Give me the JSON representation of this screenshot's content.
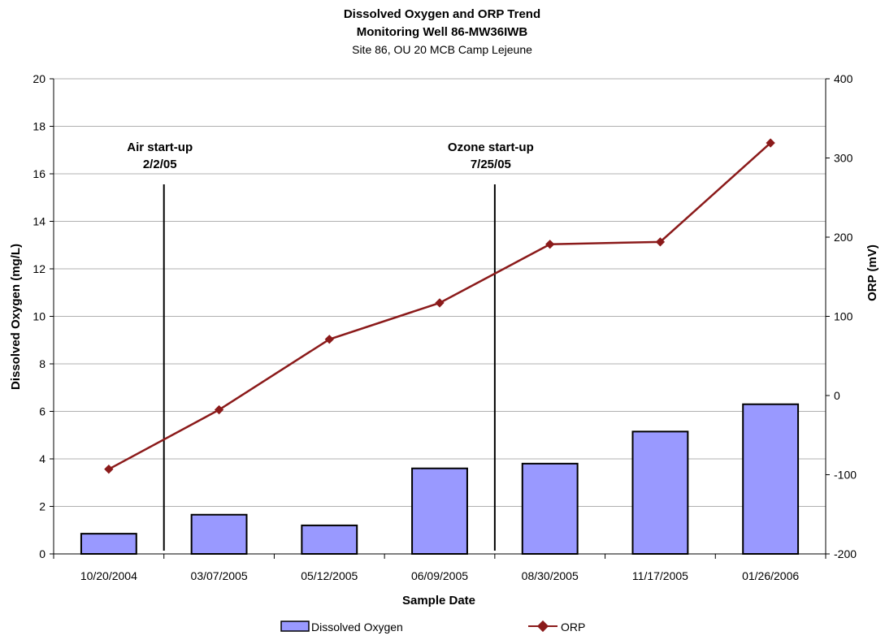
{
  "chart_data": {
    "type": "bar+line",
    "title": "Dissolved Oxygen and ORP Trend",
    "subtitle1": "Monitoring Well 86-MW36IWB",
    "subtitle2": "Site 86, OU 20 MCB Camp Lejeune",
    "xlabel": "Sample Date",
    "ylabel_left": "Dissolved Oxygen (mg/L)",
    "ylabel_right": "ORP (mV)",
    "ylim_left": [
      0,
      20
    ],
    "ylim_right": [
      -200,
      400
    ],
    "yticks_left": [
      0,
      2,
      4,
      6,
      8,
      10,
      12,
      14,
      16,
      18,
      20
    ],
    "yticks_right": [
      -200,
      -100,
      0,
      100,
      200,
      300,
      400
    ],
    "grid": true,
    "legend_position": "bottom",
    "categories": [
      "10/20/2004",
      "03/07/2005",
      "05/12/2005",
      "06/09/2005",
      "08/30/2005",
      "11/17/2005",
      "01/26/2006"
    ],
    "series": [
      {
        "name": "Dissolved Oxygen",
        "type": "bar",
        "axis": "left",
        "color": "#9999ff",
        "values": [
          0.85,
          1.65,
          1.2,
          3.6,
          3.8,
          5.15,
          6.3
        ]
      },
      {
        "name": "ORP",
        "type": "line",
        "axis": "right",
        "color": "#8b1a1a",
        "values": [
          -93,
          -18,
          71,
          117,
          191,
          194,
          319
        ]
      }
    ],
    "annotations": [
      {
        "line1": "Air start-up",
        "line2": "2/2/05",
        "between": [
          0,
          1
        ]
      },
      {
        "line1": "Ozone start-up",
        "line2": "7/25/05",
        "between": [
          3,
          4
        ]
      }
    ]
  }
}
